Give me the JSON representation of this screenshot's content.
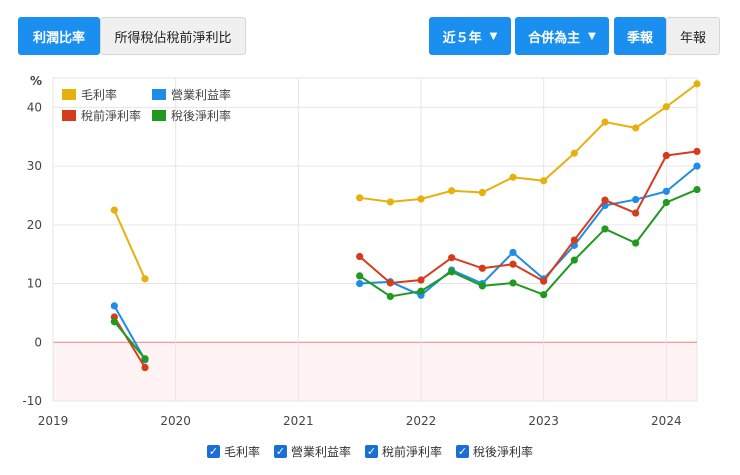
{
  "header": {
    "tabs": [
      {
        "label": "利潤比率",
        "active": true
      },
      {
        "label": "所得稅佔稅前淨利比",
        "active": false
      }
    ],
    "range_label": "近５年",
    "basis_label": "合併為主",
    "period_tabs": [
      {
        "label": "季報",
        "active": true
      },
      {
        "label": "年報",
        "active": false
      }
    ]
  },
  "chart_data": {
    "type": "line",
    "ylabel": "%",
    "ylim": [
      -10,
      45
    ],
    "yticks": [
      -10,
      0,
      10,
      20,
      30,
      40
    ],
    "xlim": [
      2019.0,
      2024.25
    ],
    "xticks": [
      2019,
      2020,
      2021,
      2022,
      2023,
      2024
    ],
    "grid": true,
    "legend_position": "top-left",
    "x": [
      2019.5,
      2019.75,
      2020.0,
      2020.25,
      2020.5,
      2020.75,
      2021.0,
      2021.25,
      2021.5,
      2021.75,
      2022.0,
      2022.25,
      2022.5,
      2022.75,
      2023.0,
      2023.25,
      2023.5,
      2023.75,
      2024.0,
      2024.25
    ],
    "series": [
      {
        "name": "毛利率",
        "color": "#e6b10e",
        "values": [
          22.5,
          10.8,
          null,
          null,
          null,
          null,
          null,
          null,
          24.6,
          23.9,
          24.4,
          25.8,
          25.5,
          28.1,
          27.5,
          32.2,
          37.5,
          36.5,
          40.1,
          44.0
        ]
      },
      {
        "name": "營業利益率",
        "color": "#1f8ce6",
        "values": [
          6.2,
          -3.0,
          null,
          null,
          null,
          null,
          null,
          null,
          10.0,
          10.3,
          8.0,
          12.3,
          10.0,
          15.3,
          10.8,
          16.5,
          23.3,
          24.3,
          25.7,
          30.0
        ]
      },
      {
        "name": "稅前淨利率",
        "color": "#d63c1c",
        "values": [
          4.3,
          -4.3,
          null,
          null,
          null,
          null,
          null,
          null,
          14.6,
          10.1,
          10.6,
          14.4,
          12.6,
          13.3,
          10.4,
          17.4,
          24.2,
          22.0,
          31.8,
          32.5
        ]
      },
      {
        "name": "稅後淨利率",
        "color": "#1f9a1f",
        "values": [
          3.5,
          -2.8,
          null,
          null,
          null,
          null,
          null,
          null,
          11.3,
          7.8,
          8.7,
          12.0,
          9.6,
          10.1,
          8.1,
          14.0,
          19.3,
          16.9,
          23.8,
          26.0
        ]
      }
    ],
    "zero_line_color": "#f08080",
    "negative_band_color": "#fff3f4"
  }
}
